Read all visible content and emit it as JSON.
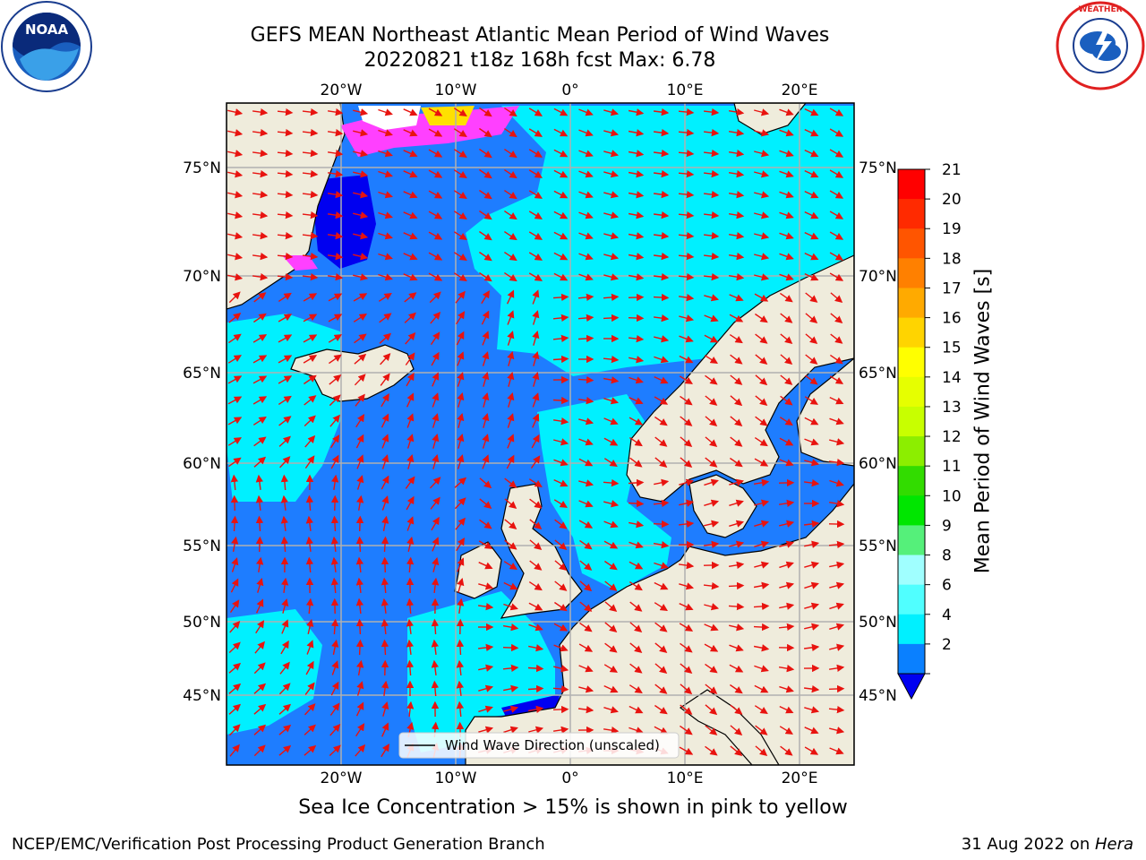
{
  "title": {
    "line1": "GEFS MEAN Northeast Atlantic Mean Period of Wind Waves",
    "line2": "20220821 t18z 168h fcst   Max: 6.78"
  },
  "logos": {
    "left": {
      "icon": "noaa-logo-icon",
      "text": "NOAA"
    },
    "right": {
      "icon": "nws-logo-icon",
      "text": "NATIONAL WEATHER SERVICE"
    }
  },
  "map": {
    "lon_labels": [
      "20°W",
      "10°W",
      "0°",
      "10°E",
      "20°E"
    ],
    "lat_labels": [
      "75°N",
      "70°N",
      "65°N",
      "60°N",
      "55°N",
      "50°N",
      "45°N"
    ],
    "legend": "Wind Wave Direction (unscaled)",
    "colors": {
      "land": "#efecdc",
      "sea_2_4": "#1e7dff",
      "sea_4_6": "#00f0ff",
      "sea_lt_2": "#0000f0",
      "vector": "#e8130f",
      "grid": "#b0b0b0"
    }
  },
  "colorbar": {
    "label": "Mean Period of Wind Waves [s]",
    "ticks": [
      "21",
      "20",
      "19",
      "18",
      "17",
      "16",
      "15",
      "14",
      "13",
      "12",
      "11",
      "10",
      "9",
      "8",
      "6",
      "4",
      "2"
    ],
    "colors": [
      "#ff0000",
      "#ff2a00",
      "#ff5500",
      "#ff8000",
      "#ffaa00",
      "#ffd400",
      "#ffff00",
      "#e6ff00",
      "#c8ff00",
      "#8cee00",
      "#32dc00",
      "#00e600",
      "#55f07a",
      "#a0ffff",
      "#50ffff",
      "#00f0ff",
      "#0a80ff"
    ],
    "under_color": "#0000f0"
  },
  "note": "Sea Ice Concentration > 15% is shown in pink to yellow",
  "footer": {
    "left": "NCEP/EMC/Verification Post Processing Product Generation Branch",
    "right_date": "31 Aug 2022 on ",
    "right_host": "Hera"
  }
}
